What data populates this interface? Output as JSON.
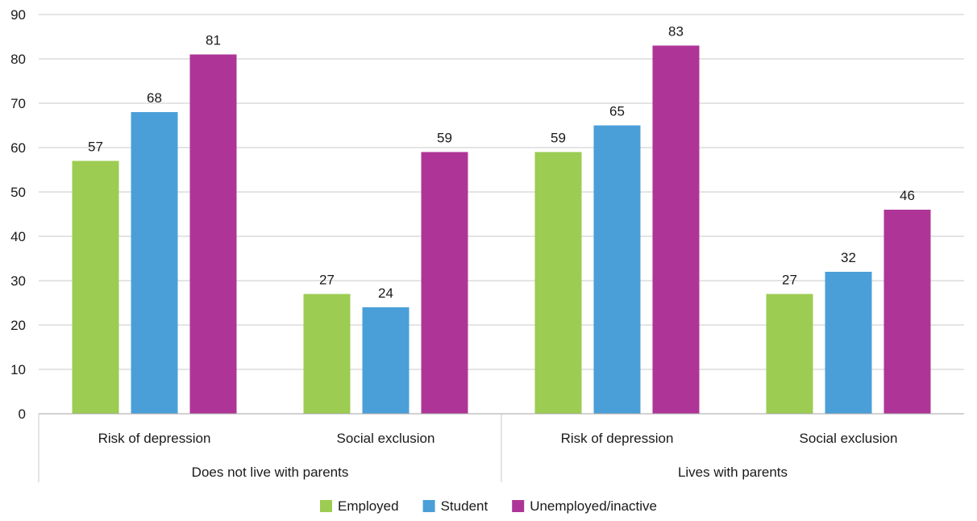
{
  "chart_data": {
    "type": "bar",
    "ylim": [
      0,
      90
    ],
    "yticks": [
      0,
      10,
      20,
      30,
      40,
      50,
      60,
      70,
      80,
      90
    ],
    "grid": true,
    "legend_position": "bottom",
    "groups": [
      {
        "label": "Does not live with parents",
        "categories": [
          "Risk of depression",
          "Social exclusion"
        ]
      },
      {
        "label": "Lives with parents",
        "categories": [
          "Risk of depression",
          "Social exclusion"
        ]
      }
    ],
    "categories": [
      "Risk of depression",
      "Social exclusion",
      "Risk of depression",
      "Social exclusion"
    ],
    "series": [
      {
        "name": "Employed",
        "color": "#9ccc52",
        "values": [
          57,
          27,
          59,
          27
        ],
        "labels": [
          "57",
          "27",
          "59",
          "27"
        ]
      },
      {
        "name": "Student",
        "color": "#4a9fd8",
        "values": [
          68,
          24,
          65,
          32
        ],
        "labels": [
          "68",
          "24",
          "65",
          "32"
        ]
      },
      {
        "name": "Unemployed/inactive",
        "color": "#ae3597",
        "values": [
          81,
          59,
          83,
          46
        ],
        "labels": [
          "81",
          "59",
          "83",
          "46"
        ]
      }
    ]
  }
}
